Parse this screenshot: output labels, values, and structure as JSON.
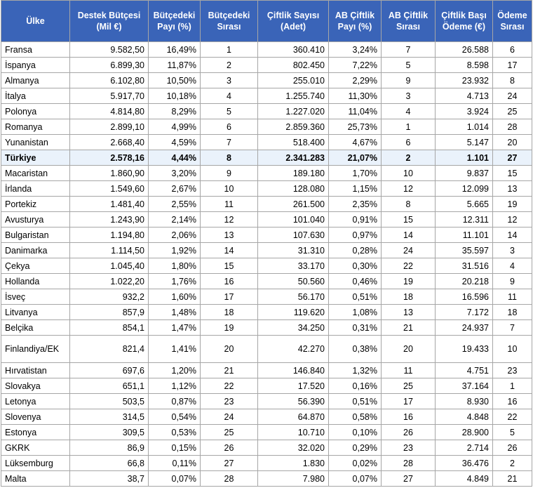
{
  "headers": [
    "Ülke",
    "Destek Bütçesi (Mil €)",
    "Bütçedeki Payı (%)",
    "Bütçedeki Sırası",
    "Çiftlik Sayısı (Adet)",
    "AB Çiftlik Payı (%)",
    "AB Çiftlik Sırası",
    "Çiftlik Başı Ödeme (€)",
    "Ödeme Sırası"
  ],
  "rows": [
    [
      "Fransa",
      "9.582,50",
      "16,49%",
      "1",
      "360.410",
      "3,24%",
      "7",
      "26.588",
      "6"
    ],
    [
      "İspanya",
      "6.899,30",
      "11,87%",
      "2",
      "802.450",
      "7,22%",
      "5",
      "8.598",
      "17"
    ],
    [
      "Almanya",
      "6.102,80",
      "10,50%",
      "3",
      "255.010",
      "2,29%",
      "9",
      "23.932",
      "8"
    ],
    [
      "İtalya",
      "5.917,70",
      "10,18%",
      "4",
      "1.255.740",
      "11,30%",
      "3",
      "4.713",
      "24"
    ],
    [
      "Polonya",
      "4.814,80",
      "8,29%",
      "5",
      "1.227.020",
      "11,04%",
      "4",
      "3.924",
      "25"
    ],
    [
      "Romanya",
      "2.899,10",
      "4,99%",
      "6",
      "2.859.360",
      "25,73%",
      "1",
      "1.014",
      "28"
    ],
    [
      "Yunanistan",
      "2.668,40",
      "4,59%",
      "7",
      "518.400",
      "4,67%",
      "6",
      "5.147",
      "20"
    ],
    [
      "Türkiye",
      "2.578,16",
      "4,44%",
      "8",
      "2.341.283",
      "21,07%",
      "2",
      "1.101",
      "27"
    ],
    [
      "Macaristan",
      "1.860,90",
      "3,20%",
      "9",
      "189.180",
      "1,70%",
      "10",
      "9.837",
      "15"
    ],
    [
      "İrlanda",
      "1.549,60",
      "2,67%",
      "10",
      "128.080",
      "1,15%",
      "12",
      "12.099",
      "13"
    ],
    [
      "Portekiz",
      "1.481,40",
      "2,55%",
      "11",
      "261.500",
      "2,35%",
      "8",
      "5.665",
      "19"
    ],
    [
      "Avusturya",
      "1.243,90",
      "2,14%",
      "12",
      "101.040",
      "0,91%",
      "15",
      "12.311",
      "12"
    ],
    [
      "Bulgaristan",
      "1.194,80",
      "2,06%",
      "13",
      "107.630",
      "0,97%",
      "14",
      "11.101",
      "14"
    ],
    [
      "Danimarka",
      "1.114,50",
      "1,92%",
      "14",
      "31.310",
      "0,28%",
      "24",
      "35.597",
      "3"
    ],
    [
      "Çekya",
      "1.045,40",
      "1,80%",
      "15",
      "33.170",
      "0,30%",
      "22",
      "31.516",
      "4"
    ],
    [
      "Hollanda",
      "1.022,20",
      "1,76%",
      "16",
      "50.560",
      "0,46%",
      "19",
      "20.218",
      "9"
    ],
    [
      "İsveç",
      "932,2",
      "1,60%",
      "17",
      "56.170",
      "0,51%",
      "18",
      "16.596",
      "11"
    ],
    [
      "Litvanya",
      "857,9",
      "1,48%",
      "18",
      "119.620",
      "1,08%",
      "13",
      "7.172",
      "18"
    ],
    [
      "Belçika",
      "854,1",
      "1,47%",
      "19",
      "34.250",
      "0,31%",
      "21",
      "24.937",
      "7"
    ],
    [
      "Finlandiya/EK",
      "821,4",
      "1,41%",
      "20",
      "42.270",
      "0,38%",
      "20",
      "19.433",
      "10"
    ],
    [
      "Hırvatistan",
      "697,6",
      "1,20%",
      "21",
      "146.840",
      "1,32%",
      "11",
      "4.751",
      "23"
    ],
    [
      "Slovakya",
      "651,1",
      "1,12%",
      "22",
      "17.520",
      "0,16%",
      "25",
      "37.164",
      "1"
    ],
    [
      "Letonya",
      "503,5",
      "0,87%",
      "23",
      "56.390",
      "0,51%",
      "17",
      "8.930",
      "16"
    ],
    [
      "Slovenya",
      "314,5",
      "0,54%",
      "24",
      "64.870",
      "0,58%",
      "16",
      "4.848",
      "22"
    ],
    [
      "Estonya",
      "309,5",
      "0,53%",
      "25",
      "10.710",
      "0,10%",
      "26",
      "28.900",
      "5"
    ],
    [
      "GKRK",
      "86,9",
      "0,15%",
      "26",
      "32.020",
      "0,29%",
      "23",
      "2.714",
      "26"
    ],
    [
      "Lüksemburg",
      "66,8",
      "0,11%",
      "27",
      "1.830",
      "0,02%",
      "28",
      "36.476",
      "2"
    ],
    [
      "Malta",
      "38,7",
      "0,07%",
      "28",
      "7.980",
      "0,07%",
      "27",
      "4.849",
      "21"
    ]
  ],
  "highlighted_country": "Türkiye",
  "colors": {
    "header_bg": "#3a64b8",
    "header_text": "#ffffff",
    "highlight_bg": "#eaf2fb",
    "border": "#a6a6a6"
  }
}
